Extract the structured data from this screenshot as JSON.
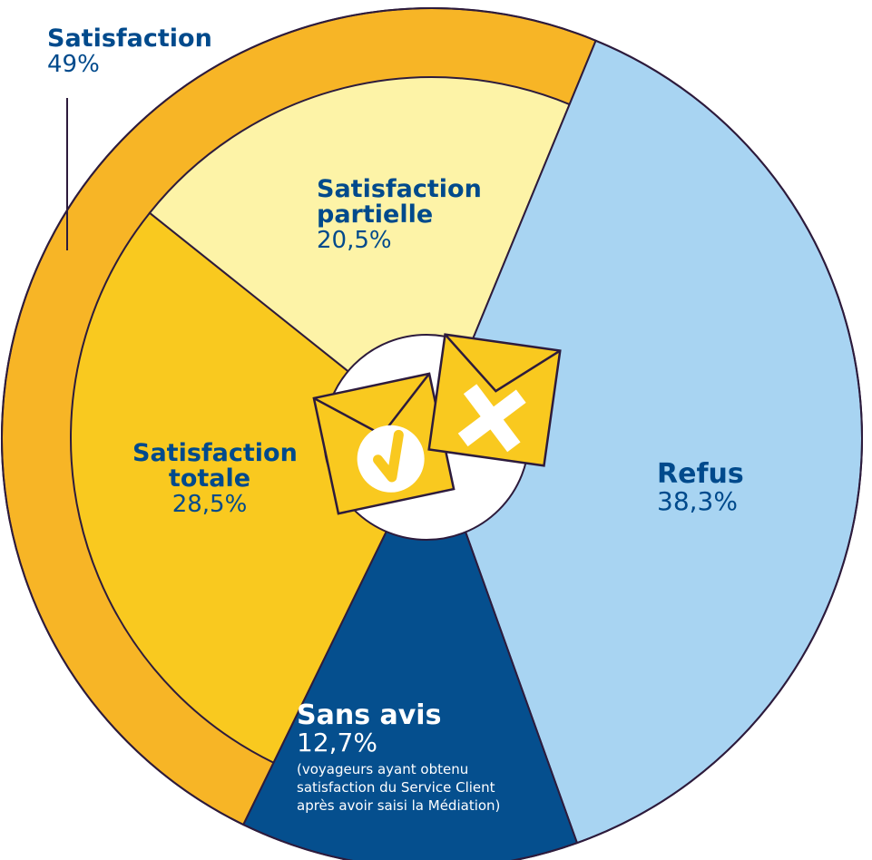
{
  "chart_data": {
    "type": "pie",
    "categories": [
      "Satisfaction totale",
      "Satisfaction partielle",
      "Refus",
      "Sans avis"
    ],
    "values": [
      28.5,
      20.5,
      38.3,
      12.7
    ],
    "value_labels": [
      "28,5%",
      "20,5%",
      "38,3%",
      "12,7%"
    ],
    "note": "(voyageurs ayant obtenu satisfaction du Service Client après avoir saisi la Médiation)",
    "group": {
      "name": "Satisfaction",
      "value": 49,
      "value_label": "49%"
    }
  },
  "colors": {
    "satisfaction_totale": "#f9c91f",
    "satisfaction_partielle": "#fdf3a7",
    "refus": "#a8d4f2",
    "sans_avis": "#054f8e",
    "satisfaction_ring": "#f7b526",
    "outline": "#2d1b3c",
    "label_blue": "#004a8c"
  },
  "icons": [
    "envelope-check-icon",
    "envelope-cross-icon"
  ]
}
